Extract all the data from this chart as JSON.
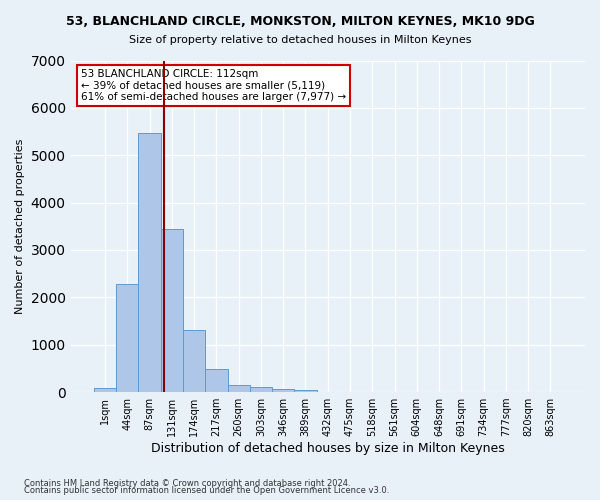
{
  "title": "53, BLANCHLAND CIRCLE, MONKSTON, MILTON KEYNES, MK10 9DG",
  "subtitle": "Size of property relative to detached houses in Milton Keynes",
  "xlabel": "Distribution of detached houses by size in Milton Keynes",
  "ylabel": "Number of detached properties",
  "footer_line1": "Contains HM Land Registry data © Crown copyright and database right 2024.",
  "footer_line2": "Contains public sector information licensed under the Open Government Licence v3.0.",
  "bin_labels": [
    "1sqm",
    "44sqm",
    "87sqm",
    "131sqm",
    "174sqm",
    "217sqm",
    "260sqm",
    "303sqm",
    "346sqm",
    "389sqm",
    "432sqm",
    "475sqm",
    "518sqm",
    "561sqm",
    "604sqm",
    "648sqm",
    "691sqm",
    "734sqm",
    "777sqm",
    "820sqm",
    "863sqm"
  ],
  "bar_values": [
    80,
    2280,
    5480,
    3450,
    1320,
    480,
    160,
    105,
    65,
    40,
    0,
    0,
    0,
    0,
    0,
    0,
    0,
    0,
    0,
    0,
    0
  ],
  "bar_color": "#aec6e8",
  "bar_edgecolor": "#5b9bd5",
  "background_color": "#e8f0f8",
  "grid_color": "#ffffff",
  "vline_x": 2.65,
  "vline_color": "#8b0000",
  "annotation_line1": "53 BLANCHLAND CIRCLE: 112sqm",
  "annotation_line2": "← 39% of detached houses are smaller (5,119)",
  "annotation_line3": "61% of semi-detached houses are larger (7,977) →",
  "annotation_box_color": "#ffffff",
  "annotation_box_edgecolor": "#cc0000",
  "ylim": [
    0,
    7000
  ],
  "yticks": [
    0,
    1000,
    2000,
    3000,
    4000,
    5000,
    6000,
    7000
  ]
}
